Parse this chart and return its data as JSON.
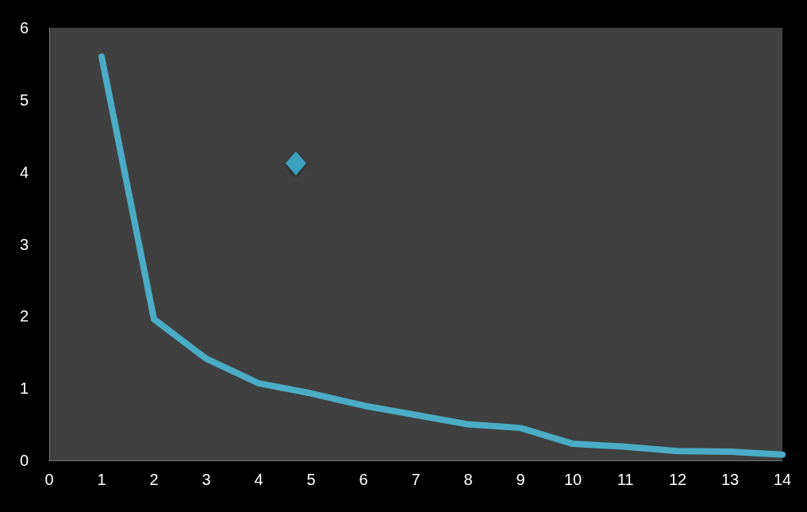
{
  "chart_data": {
    "type": "line",
    "x": [
      1,
      2,
      3,
      4,
      5,
      6,
      7,
      8,
      9,
      10,
      11,
      12,
      13,
      14
    ],
    "series": [
      {
        "color": "#4bacc6",
        "marker": "none",
        "values": [
          5.6,
          1.96,
          1.41,
          1.07,
          0.93,
          0.76,
          0.63,
          0.5,
          0.45,
          0.23,
          0.19,
          0.13,
          0.12,
          0.08
        ]
      },
      {
        "type": "scatter",
        "color": "#3fb5d8",
        "marker": "diamond",
        "x": [
          4.71
        ],
        "values": [
          4.12
        ]
      }
    ],
    "xlim": [
      0,
      14
    ],
    "xticks": [
      0,
      1,
      2,
      3,
      4,
      5,
      6,
      7,
      8,
      9,
      10,
      11,
      12,
      13,
      14
    ],
    "ylim": [
      0,
      6
    ],
    "yticks": [
      0,
      1,
      2,
      3,
      4,
      5,
      6
    ],
    "grid": false
  }
}
